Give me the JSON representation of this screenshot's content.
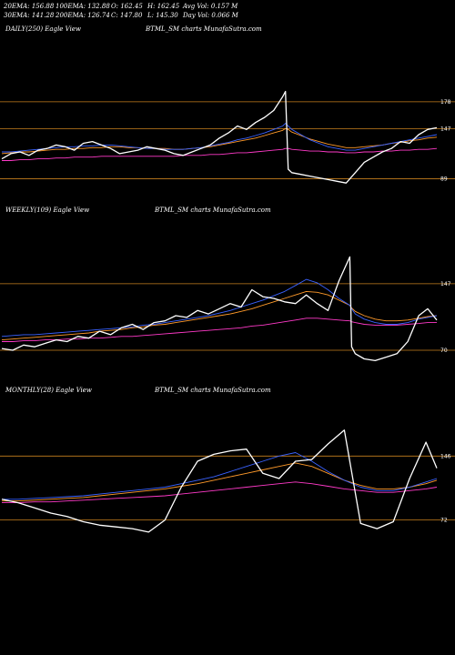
{
  "stats": {
    "ema20": "20EMA: 156.88",
    "ema100": "100EMA: 132.88",
    "open": "O: 162.45",
    "high": "H: 162.45",
    "avgvol": "Avg Vol: 0.157 M",
    "ema30": "30EMA: 141.28",
    "ema200": "200EMA: 126.74",
    "close": "C: 147.80",
    "low": "L: 145.30",
    "dayvol": "Day Vol: 0.066  M"
  },
  "colors": {
    "background": "#000000",
    "price": "#ffffff",
    "ema_blue": "#3a62ff",
    "ema_orange": "#ff9a2a",
    "ema_magenta": "#ff3ac8",
    "band": "#c8801e"
  },
  "chart_data": [
    {
      "type": "line",
      "label": "DAILY(250) Eagle  View",
      "title": "BTML_SM charts MunafaSutra.com",
      "right_labels": [
        "178",
        "147",
        "89"
      ],
      "bands": [
        178,
        147,
        89
      ],
      "ylim": [
        60,
        260
      ],
      "x": [
        0,
        10,
        20,
        30,
        40,
        50,
        60,
        70,
        80,
        90,
        100,
        110,
        120,
        130,
        140,
        150,
        160,
        170,
        180,
        190,
        200,
        210,
        220,
        230,
        240,
        250,
        260,
        270,
        280,
        290,
        300,
        310,
        313,
        316,
        320,
        330,
        340,
        350,
        360,
        370,
        380,
        390,
        400,
        410,
        420,
        430,
        440,
        450,
        460,
        470,
        480
      ],
      "series": [
        {
          "values": [
            112,
            118,
            120,
            116,
            122,
            124,
            128,
            126,
            122,
            130,
            132,
            128,
            124,
            118,
            120,
            122,
            126,
            124,
            122,
            118,
            116,
            120,
            124,
            128,
            136,
            142,
            150,
            146,
            154,
            160,
            168,
            184,
            190,
            100,
            96,
            94,
            92,
            90,
            88,
            86,
            84,
            96,
            108,
            114,
            120,
            124,
            132,
            130,
            140,
            146,
            148
          ]
        },
        {
          "values": [
            120,
            120,
            121,
            122,
            123,
            124,
            125,
            126,
            126,
            127,
            127,
            128,
            128,
            127,
            126,
            125,
            124,
            124,
            123,
            123,
            123,
            124,
            125,
            127,
            129,
            131,
            134,
            136,
            139,
            142,
            146,
            150,
            153,
            150,
            146,
            140,
            134,
            130,
            126,
            124,
            122,
            122,
            124,
            126,
            128,
            130,
            132,
            134,
            136,
            138,
            140
          ]
        },
        {
          "values": [
            118,
            119,
            120,
            120,
            121,
            122,
            123,
            123,
            124,
            124,
            125,
            125,
            126,
            126,
            125,
            125,
            124,
            124,
            124,
            123,
            123,
            124,
            125,
            126,
            128,
            130,
            132,
            134,
            136,
            139,
            142,
            145,
            147,
            146,
            143,
            139,
            135,
            132,
            129,
            127,
            125,
            125,
            126,
            127,
            128,
            130,
            131,
            133,
            134,
            136,
            137
          ]
        },
        {
          "values": [
            110,
            110,
            111,
            111,
            112,
            112,
            113,
            113,
            114,
            114,
            114,
            115,
            115,
            115,
            115,
            115,
            115,
            115,
            115,
            115,
            116,
            116,
            116,
            117,
            117,
            118,
            119,
            119,
            120,
            121,
            122,
            123,
            124,
            124,
            123,
            122,
            121,
            121,
            120,
            120,
            119,
            119,
            120,
            120,
            121,
            121,
            122,
            122,
            123,
            123,
            124
          ]
        }
      ]
    },
    {
      "type": "line",
      "label": "WEEKLY(109) Eagle  View",
      "title": "BTML_SM charts MunafaSutra.com",
      "right_labels": [
        "147",
        "70"
      ],
      "bands": [
        147,
        70
      ],
      "ylim": [
        30,
        230
      ],
      "x": [
        0,
        12,
        24,
        36,
        48,
        60,
        72,
        84,
        96,
        108,
        120,
        132,
        144,
        156,
        168,
        180,
        192,
        204,
        216,
        228,
        240,
        252,
        264,
        276,
        288,
        300,
        312,
        324,
        336,
        348,
        360,
        372,
        384,
        386,
        390,
        400,
        412,
        424,
        436,
        448,
        460,
        470,
        480
      ],
      "series": [
        {
          "values": [
            72,
            70,
            76,
            74,
            78,
            82,
            80,
            86,
            84,
            92,
            88,
            96,
            100,
            94,
            102,
            104,
            110,
            108,
            116,
            112,
            118,
            124,
            120,
            140,
            132,
            130,
            126,
            124,
            134,
            124,
            116,
            150,
            178,
            74,
            66,
            60,
            58,
            62,
            66,
            80,
            110,
            118,
            105
          ]
        },
        {
          "values": [
            86,
            87,
            88,
            88,
            89,
            90,
            91,
            92,
            93,
            94,
            95,
            96,
            97,
            99,
            100,
            102,
            104,
            106,
            108,
            110,
            113,
            116,
            120,
            124,
            128,
            133,
            138,
            145,
            152,
            148,
            140,
            130,
            122,
            118,
            112,
            106,
            102,
            100,
            100,
            102,
            106,
            108,
            110
          ]
        },
        {
          "values": [
            82,
            83,
            84,
            85,
            86,
            87,
            88,
            89,
            90,
            92,
            93,
            94,
            96,
            97,
            99,
            100,
            102,
            104,
            106,
            108,
            110,
            112,
            115,
            118,
            122,
            126,
            130,
            134,
            138,
            137,
            134,
            128,
            122,
            119,
            115,
            110,
            106,
            104,
            104,
            105,
            107,
            109,
            110
          ]
        },
        {
          "values": [
            80,
            80,
            81,
            81,
            82,
            82,
            83,
            83,
            84,
            84,
            85,
            86,
            86,
            87,
            88,
            89,
            90,
            91,
            92,
            93,
            94,
            95,
            96,
            98,
            99,
            101,
            103,
            105,
            107,
            107,
            106,
            105,
            104,
            103,
            102,
            100,
            99,
            99,
            99,
            100,
            101,
            102,
            102
          ]
        }
      ]
    },
    {
      "type": "line",
      "label": "MONTHLY(28) Eagle  View",
      "title": "BTML_SM charts MunafaSutra.com",
      "right_labels": [
        "146",
        "72"
      ],
      "bands": [
        146,
        72
      ],
      "ylim": [
        20,
        220
      ],
      "x": [
        0,
        18,
        36,
        54,
        72,
        90,
        108,
        126,
        144,
        162,
        180,
        198,
        216,
        234,
        252,
        270,
        288,
        306,
        324,
        342,
        360,
        378,
        396,
        414,
        432,
        450,
        468,
        480
      ],
      "series": [
        {
          "values": [
            96,
            92,
            86,
            80,
            76,
            70,
            66,
            64,
            62,
            58,
            72,
            110,
            140,
            148,
            152,
            154,
            126,
            120,
            140,
            142,
            160,
            176,
            68,
            62,
            70,
            120,
            162,
            132
          ]
        },
        {
          "values": [
            96,
            96,
            97,
            98,
            99,
            100,
            102,
            104,
            106,
            108,
            110,
            114,
            118,
            122,
            128,
            134,
            140,
            146,
            150,
            140,
            128,
            118,
            110,
            106,
            106,
            110,
            116,
            120
          ]
        },
        {
          "values": [
            94,
            94,
            95,
            96,
            97,
            98,
            100,
            102,
            104,
            106,
            108,
            111,
            114,
            118,
            122,
            126,
            130,
            134,
            138,
            134,
            126,
            118,
            112,
            108,
            108,
            110,
            114,
            118
          ]
        },
        {
          "values": [
            92,
            92,
            93,
            93,
            94,
            95,
            96,
            97,
            98,
            99,
            100,
            102,
            104,
            106,
            108,
            110,
            112,
            114,
            116,
            114,
            111,
            108,
            106,
            104,
            104,
            106,
            108,
            110
          ]
        }
      ]
    }
  ]
}
